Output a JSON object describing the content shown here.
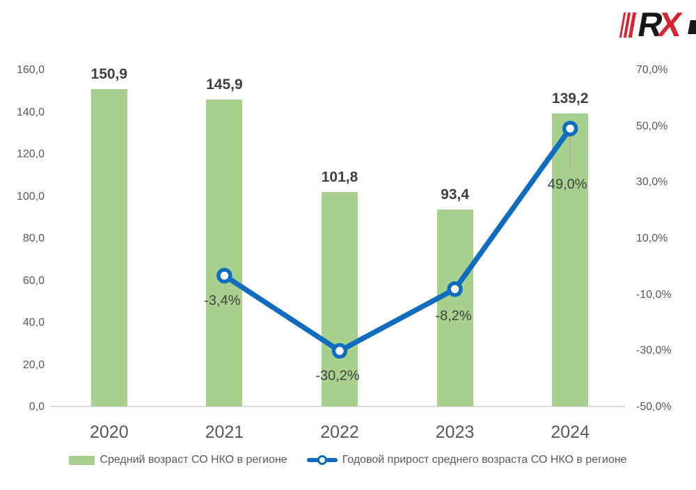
{
  "logo": {
    "r": "R",
    "x": "X"
  },
  "colors": {
    "bar": "#A8D18D",
    "line": "#0F6CBF",
    "marker_fill": "#FFFFFF",
    "axis_line": "#DCDCDC",
    "tick_text": "#595959",
    "bar_label_text": "#3F3F3F",
    "line_label_text": "#404040",
    "leader_line": "#A6A6A6",
    "logo_red": "#D9232E",
    "logo_black": "#171717"
  },
  "chart_data": {
    "type": "combo",
    "title": "",
    "categories": [
      "2020",
      "2021",
      "2022",
      "2023",
      "2024"
    ],
    "series": [
      {
        "name": "Средний возраст СО НКО в регионе",
        "type": "bar",
        "axis": "left",
        "color": "#A8D18D",
        "values": [
          150.9,
          145.9,
          101.8,
          93.4,
          139.2
        ],
        "value_labels": [
          "150,9",
          "145,9",
          "101,8",
          "93,4",
          "139,2"
        ]
      },
      {
        "name": "Годовой прирост среднего возраста СО НКО в регионе",
        "type": "line",
        "axis": "right",
        "color": "#0F6CBF",
        "values": [
          null,
          -3.4,
          -30.2,
          -8.2,
          49.0
        ],
        "value_labels": [
          null,
          "-3,4%",
          "-30,2%",
          "-8,2%",
          "49,0%"
        ],
        "label_offsets": [
          null,
          {
            "dx": -3,
            "dy": 25
          },
          {
            "dx": -3,
            "dy": 25
          },
          {
            "dx": -2,
            "dy": 28
          },
          {
            "dx": -4,
            "dy": 69,
            "leader": true
          }
        ]
      }
    ],
    "left_axis": {
      "min": 0,
      "max": 160,
      "step": 20,
      "tick_values": [
        0,
        20,
        40,
        60,
        80,
        100,
        120,
        140,
        160
      ],
      "tick_labels": [
        "0,0",
        "20,0",
        "40,0",
        "60,0",
        "80,0",
        "100,0",
        "120,0",
        "140,0",
        "160,0"
      ]
    },
    "right_axis": {
      "min": -50,
      "max": 70,
      "step": 20,
      "tick_values": [
        -50,
        -30,
        -10,
        10,
        30,
        50,
        70
      ],
      "tick_labels": [
        "-50,0%",
        "-30,0%",
        "-10,0%",
        "10,0%",
        "30,0%",
        "50,0%",
        "70,0%"
      ]
    },
    "grid": false,
    "legend_position": "bottom"
  }
}
